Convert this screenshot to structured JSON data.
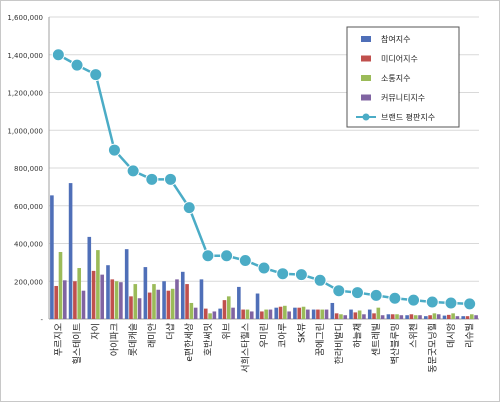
{
  "chart_data": {
    "type": "bar",
    "categories": [
      "푸르지오",
      "힐스테이트",
      "자이",
      "아이파크",
      "롯데캐슬",
      "래미안",
      "더샵",
      "e편한세상",
      "호반써밋",
      "위브",
      "서희스타힐스",
      "우미린",
      "코아루",
      "SK뷰",
      "꿈에그린",
      "한라비발디",
      "하늘채",
      "센트레빌",
      "벽산블루밍",
      "스위첸",
      "동문굿모닝힐",
      "데시앙",
      "리슈빌"
    ],
    "ylim": [
      0,
      1600000
    ],
    "yticks": [
      0,
      200000,
      400000,
      600000,
      800000,
      1000000,
      1200000,
      1400000,
      1600000
    ],
    "ytick_labels": [
      "-",
      "200,000",
      "400,000",
      "600,000",
      "800,000",
      "1,000,000",
      "1,200,000",
      "1,400,000",
      "1,600,000"
    ],
    "legend_position": "top-right",
    "grid": true,
    "series": [
      {
        "name": "참여지수",
        "color": "#4f6fb8",
        "values": [
          655000,
          720000,
          435000,
          285000,
          370000,
          275000,
          200000,
          250000,
          210000,
          55000,
          170000,
          135000,
          60000,
          60000,
          50000,
          85000,
          50000,
          50000,
          25000,
          20000,
          15000,
          18000,
          15000
        ]
      },
      {
        "name": "미디어지수",
        "color": "#c0504d",
        "values": [
          175000,
          200000,
          255000,
          210000,
          120000,
          140000,
          150000,
          185000,
          55000,
          100000,
          50000,
          40000,
          65000,
          60000,
          50000,
          30000,
          35000,
          30000,
          25000,
          25000,
          20000,
          22000,
          15000
        ]
      },
      {
        "name": "소통지수",
        "color": "#9bbb59",
        "values": [
          355000,
          270000,
          365000,
          200000,
          185000,
          185000,
          160000,
          85000,
          30000,
          120000,
          50000,
          50000,
          70000,
          65000,
          50000,
          25000,
          45000,
          60000,
          25000,
          20000,
          30000,
          30000,
          25000
        ]
      },
      {
        "name": "커뮤니티지수",
        "color": "#8064a2",
        "values": [
          205000,
          150000,
          235000,
          195000,
          110000,
          155000,
          210000,
          60000,
          40000,
          60000,
          40000,
          50000,
          40000,
          50000,
          50000,
          20000,
          25000,
          20000,
          20000,
          20000,
          25000,
          15000,
          20000
        ]
      }
    ],
    "line": {
      "name": "브랜드 평판지수",
      "color": "#4bacc6",
      "values": [
        1400000,
        1345000,
        1295000,
        895000,
        785000,
        740000,
        740000,
        590000,
        335000,
        335000,
        310000,
        270000,
        240000,
        235000,
        205000,
        150000,
        140000,
        125000,
        110000,
        100000,
        90000,
        85000,
        80000
      ]
    }
  }
}
